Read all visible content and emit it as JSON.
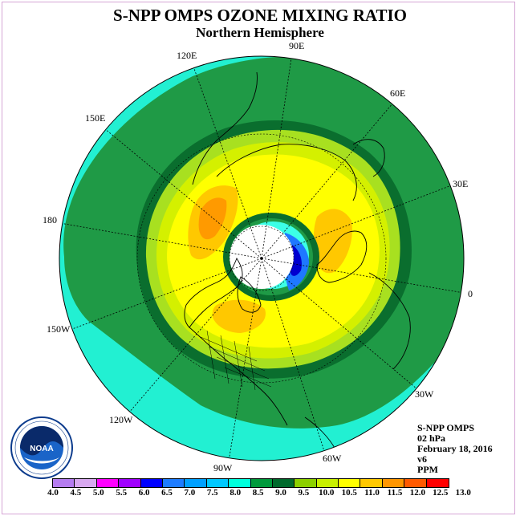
{
  "title": "S-NPP OMPS OZONE MIXING RATIO",
  "subtitle": "Northern Hemisphere",
  "longitude_labels": [
    "90E",
    "60E",
    "30E",
    "0",
    "30W",
    "60W",
    "90W",
    "120W",
    "150W",
    "180",
    "150E",
    "120E"
  ],
  "info": {
    "instrument": "S-NPP OMPS",
    "level": "02 hPa",
    "date": "February 18, 2016",
    "version": "v6",
    "units": "PPM"
  },
  "logo": {
    "text": "NOAA",
    "icon": "noaa-logo"
  },
  "colorbar": {
    "ticks": [
      "4.0",
      "4.5",
      "5.0",
      "5.5",
      "6.0",
      "6.5",
      "7.0",
      "7.5",
      "8.0",
      "8.5",
      "9.0",
      "9.5",
      "10.0",
      "10.5",
      "11.0",
      "11.5",
      "12.0",
      "12.5",
      "13.0"
    ],
    "colors": [
      "#b57cf0",
      "#d8a8f0",
      "#ff00ff",
      "#a000ff",
      "#0000ff",
      "#1e7cff",
      "#00a0ff",
      "#00c8ff",
      "#00ffdc",
      "#009a3c",
      "#006a2c",
      "#8cd000",
      "#c8f000",
      "#ffff00",
      "#ffc800",
      "#ff9600",
      "#ff5a00",
      "#ff0000",
      "#9a5a3c"
    ]
  },
  "colors": {
    "outer": "#22f0d2",
    "green_dark": "#1f9a46",
    "green_darker": "#0a6e2e",
    "lime": "#a8e020",
    "yellow_green": "#d4f000",
    "yellow": "#ffff00",
    "orange_light": "#ffc800",
    "orange": "#ff9a00",
    "cyan": "#3cffe6",
    "blue": "#1e78ff",
    "deep_blue": "#0000d0",
    "pole": "#ffffff"
  }
}
